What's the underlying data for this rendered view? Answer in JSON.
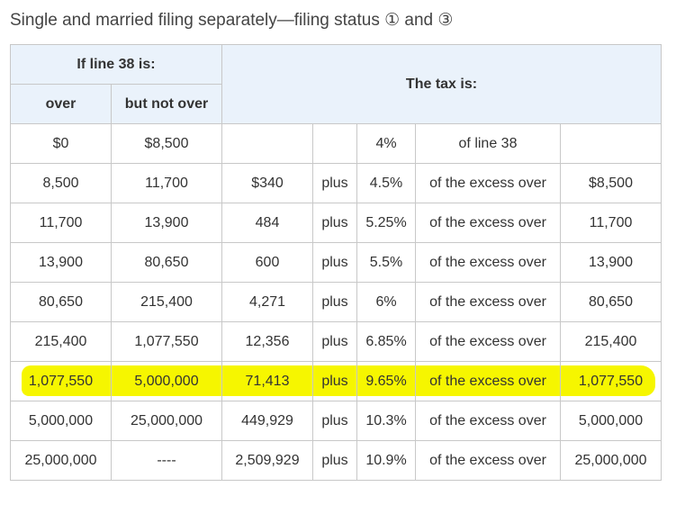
{
  "title": "Single and married filing separately—filing status ① and ③",
  "table": {
    "header": {
      "group_left": "If line 38 is:",
      "over": "over",
      "not_over": "but not over",
      "group_right": "The tax is:"
    },
    "rows": [
      {
        "over": "$0",
        "not_over": "$8,500",
        "rate": "4%",
        "text": "of line 38"
      },
      {
        "over": "8,500",
        "not_over": "11,700",
        "base": "$340",
        "plus": "plus",
        "rate": "4.5%",
        "text": "of the excess over",
        "excess": "$8,500"
      },
      {
        "over": "11,700",
        "not_over": "13,900",
        "base": "484",
        "plus": "plus",
        "rate": "5.25%",
        "text": "of the excess over",
        "excess": "11,700"
      },
      {
        "over": "13,900",
        "not_over": "80,650",
        "base": "600",
        "plus": "plus",
        "rate": "5.5%",
        "text": "of the excess over",
        "excess": "13,900"
      },
      {
        "over": "80,650",
        "not_over": "215,400",
        "base": "4,271",
        "plus": "plus",
        "rate": "6%",
        "text": "of the excess over",
        "excess": "80,650"
      },
      {
        "over": "215,400",
        "not_over": "1,077,550",
        "base": "12,356",
        "plus": "plus",
        "rate": "6.85%",
        "text": "of the excess over",
        "excess": "215,400"
      },
      {
        "over": "1,077,550",
        "not_over": "5,000,000",
        "base": "71,413",
        "plus": "plus",
        "rate": "9.65%",
        "text": "of the excess over",
        "excess": "1,077,550"
      },
      {
        "over": "5,000,000",
        "not_over": "25,000,000",
        "base": "449,929",
        "plus": "plus",
        "rate": "10.3%",
        "text": "of the excess over",
        "excess": "5,000,000"
      },
      {
        "over": "25,000,000",
        "not_over": "----",
        "base": "2,509,929",
        "plus": "plus",
        "rate": "10.9%",
        "text": "of the excess over",
        "excess": "25,000,000"
      }
    ]
  }
}
